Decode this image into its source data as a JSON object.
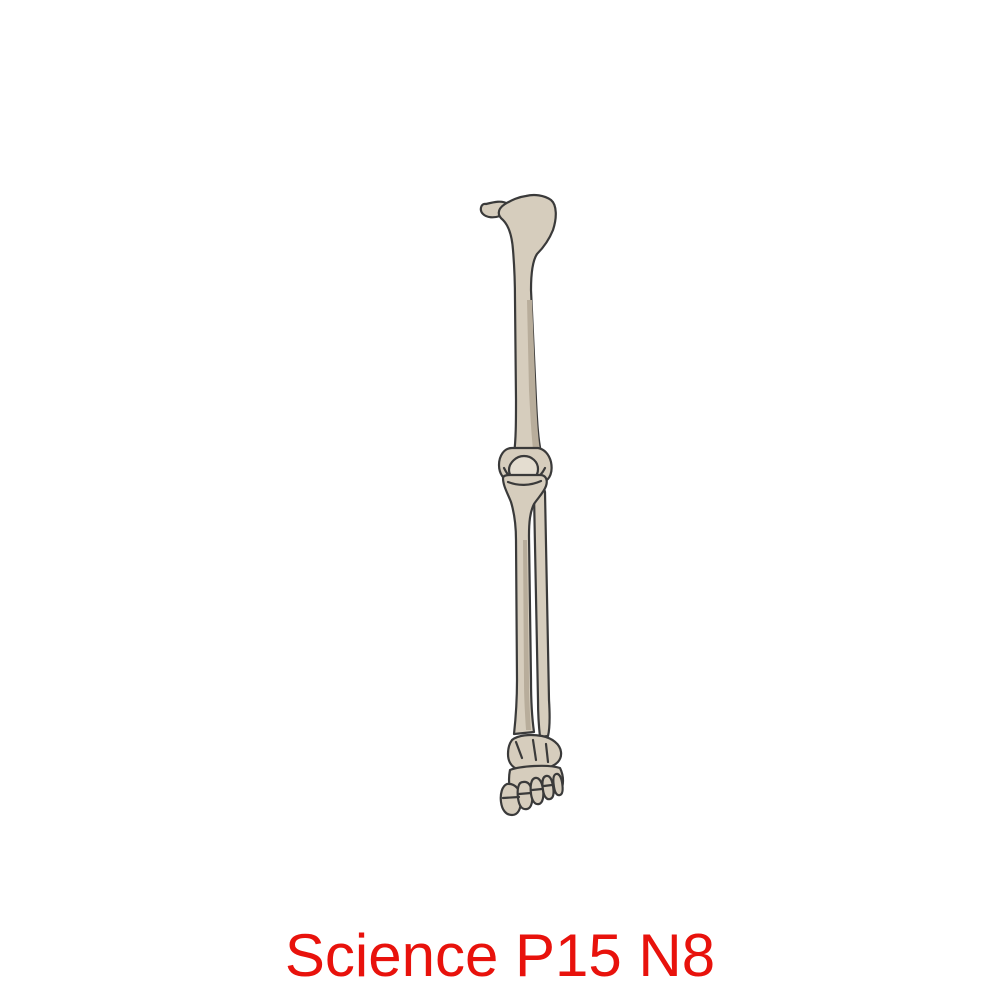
{
  "caption": {
    "text": "Science P15 N8",
    "color": "#e8120c"
  },
  "illustration": {
    "subject": "leg-skeleton-icon",
    "bone_fill": "#d6cdbd",
    "bone_shadow": "#b8ad9b",
    "outline": "#3a3a3a"
  }
}
